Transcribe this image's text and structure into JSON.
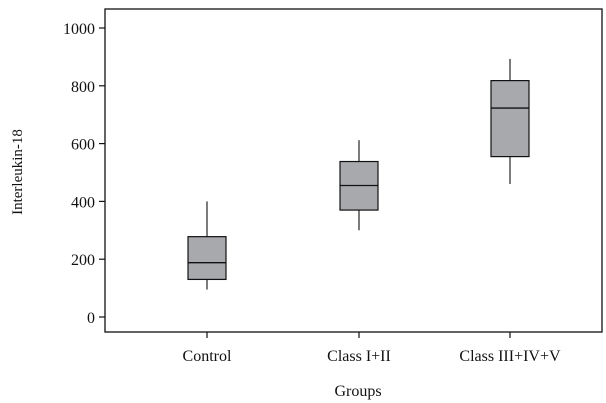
{
  "chart_data": {
    "type": "box",
    "title": "",
    "xlabel": "Groups",
    "ylabel": "Interleukin-18",
    "ylim": [
      -50,
      1070
    ],
    "yticks": [
      0,
      200,
      400,
      600,
      800,
      1000
    ],
    "categories": [
      "Control",
      "Class I+II",
      "Class III+IV+V"
    ],
    "boxes": [
      {
        "category": "Control",
        "whisker_low": 95,
        "q1": 130,
        "median": 188,
        "q3": 278,
        "whisker_high": 400
      },
      {
        "category": "Class I+II",
        "whisker_low": 300,
        "q1": 370,
        "median": 455,
        "q3": 538,
        "whisker_high": 612
      },
      {
        "category": "Class III+IV+V",
        "whisker_low": 460,
        "q1": 555,
        "median": 723,
        "q3": 818,
        "whisker_high": 893
      }
    ],
    "box_fill": "#a7a9ad",
    "line_color": "#111111",
    "grid": false,
    "legend": "none"
  }
}
